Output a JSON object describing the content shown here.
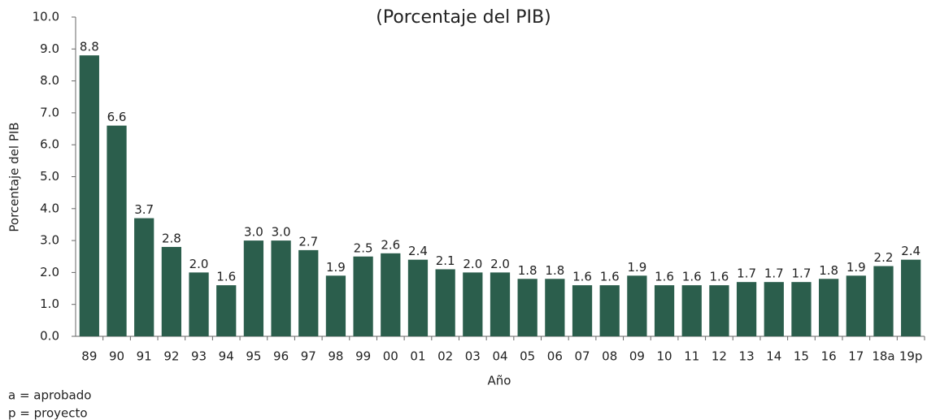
{
  "chart_data": {
    "type": "bar",
    "subtitle": "(Porcentaje del PIB)",
    "y_label": "Porcentaje del PIB",
    "x_label": "Año",
    "notes": [
      "a = aprobado",
      "p = proyecto"
    ],
    "categories": [
      "89",
      "90",
      "91",
      "92",
      "93",
      "94",
      "95",
      "96",
      "97",
      "98",
      "99",
      "00",
      "01",
      "02",
      "03",
      "04",
      "05",
      "06",
      "07",
      "08",
      "09",
      "10",
      "11",
      "12",
      "13",
      "14",
      "15",
      "16",
      "17",
      "18a",
      "19p"
    ],
    "values": [
      8.8,
      6.6,
      3.7,
      2.8,
      2,
      1.6,
      3,
      3,
      2.7,
      1.9,
      2.5,
      2.6,
      2.4,
      2.1,
      2,
      2,
      1.8,
      1.8,
      1.6,
      1.6,
      1.9,
      1.6,
      1.6,
      1.6,
      1.7,
      1.7,
      1.7,
      1.8,
      1.9,
      2.2,
      2.4
    ],
    "value_labels": [
      "8.8",
      "6.6",
      "3.7",
      "2.8",
      "2.0",
      "1.6",
      "3.0",
      "3.0",
      "2.7",
      "1.9",
      "2.5",
      "2.6",
      "2.4",
      "2.1",
      "2.0",
      "2.0",
      "1.8",
      "1.8",
      "1.6",
      "1.6",
      "1.9",
      "1.6",
      "1.6",
      "1.6",
      "1.7",
      "1.7",
      "1.7",
      "1.8",
      "1.9",
      "2.2",
      "2.4"
    ],
    "color": "#2b5e4c",
    "ylim": [
      0,
      10
    ],
    "yticks": [
      {
        "value": 0,
        "label": "0.0"
      },
      {
        "value": 1,
        "label": "1.0"
      },
      {
        "value": 2,
        "label": "2.0"
      },
      {
        "value": 3,
        "label": "3.0"
      },
      {
        "value": 4,
        "label": "4.0"
      },
      {
        "value": 5,
        "label": "5.0"
      },
      {
        "value": 6,
        "label": "6.0"
      },
      {
        "value": 7,
        "label": "7.0"
      },
      {
        "value": 8,
        "label": "8.0"
      },
      {
        "value": 9,
        "label": "9.0"
      },
      {
        "value": 10,
        "label": "10.0"
      }
    ],
    "grid": false
  }
}
